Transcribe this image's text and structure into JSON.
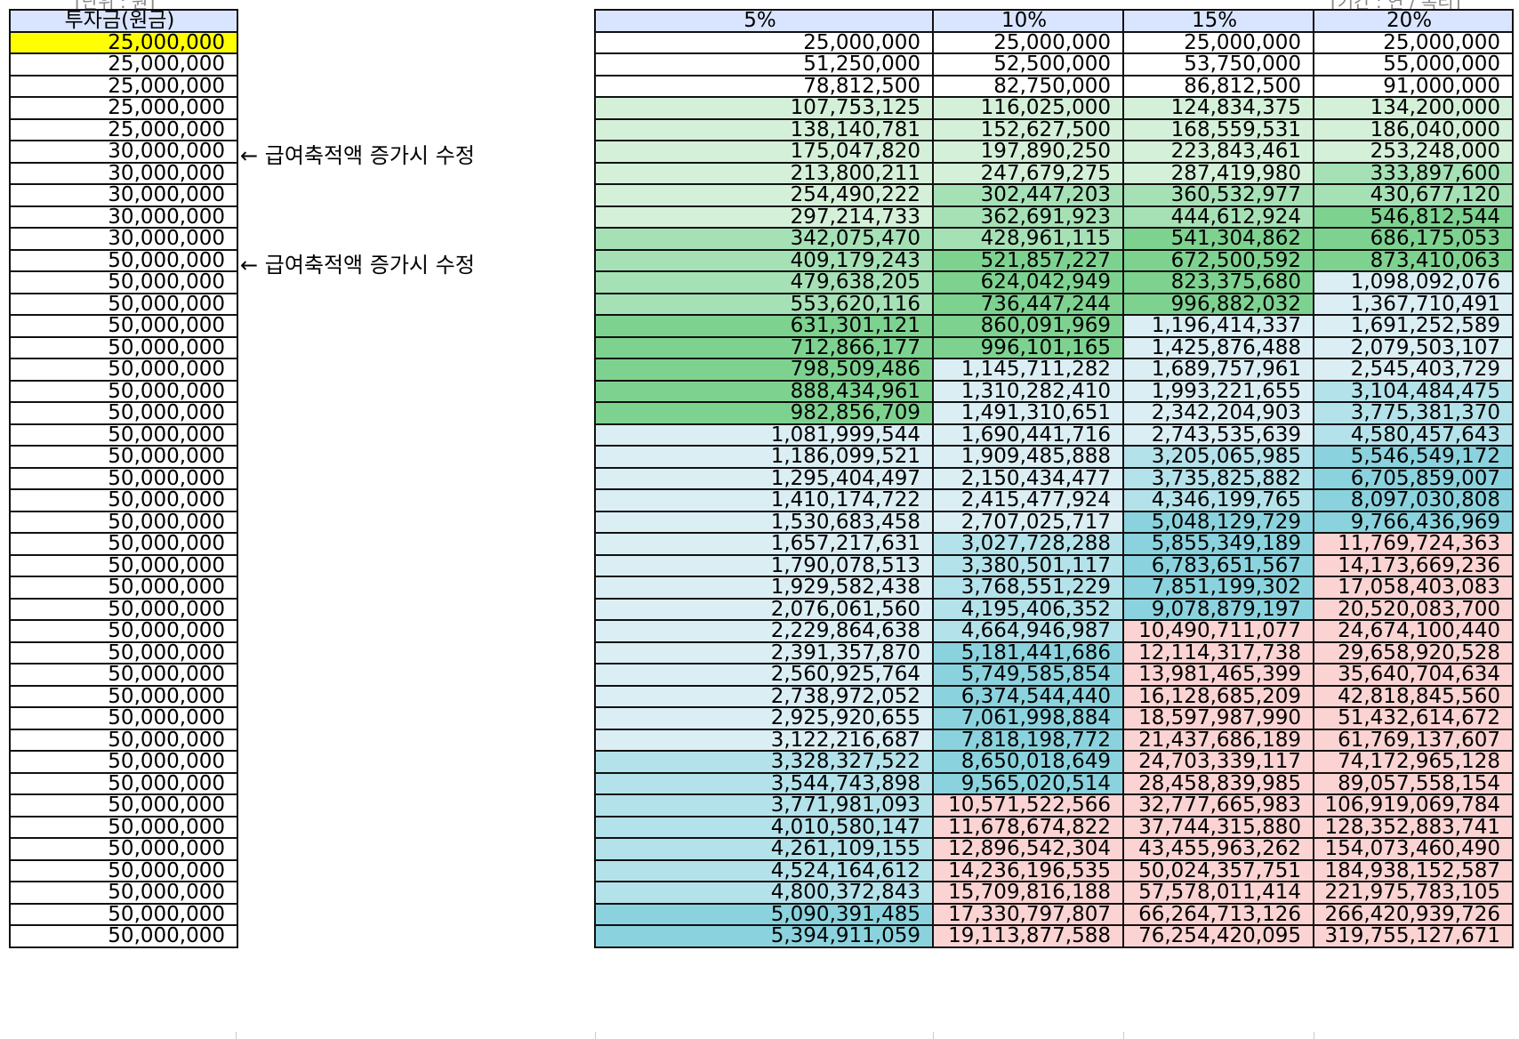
{
  "notes": {
    "left": "[단위 : 원]",
    "right": "[기간 : 연 / 복리]"
  },
  "left_table": {
    "header": "투자금(원금)",
    "rows": [
      "25,000,000",
      "25,000,000",
      "25,000,000",
      "25,000,000",
      "25,000,000",
      "30,000,000",
      "30,000,000",
      "30,000,000",
      "30,000,000",
      "30,000,000",
      "50,000,000",
      "50,000,000",
      "50,000,000",
      "50,000,000",
      "50,000,000",
      "50,000,000",
      "50,000,000",
      "50,000,000",
      "50,000,000",
      "50,000,000",
      "50,000,000",
      "50,000,000",
      "50,000,000",
      "50,000,000",
      "50,000,000",
      "50,000,000",
      "50,000,000",
      "50,000,000",
      "50,000,000",
      "50,000,000",
      "50,000,000",
      "50,000,000",
      "50,000,000",
      "50,000,000",
      "50,000,000",
      "50,000,000",
      "50,000,000",
      "50,000,000",
      "50,000,000",
      "50,000,000",
      "50,000,000",
      "50,000,000"
    ]
  },
  "annotations": [
    "← 급여축적액 증가시 수정",
    "← 급여축적액 증가시 수정"
  ],
  "right_table": {
    "headers": [
      "5%",
      "10%",
      "15%",
      "20%"
    ],
    "rows": [
      [
        "25,000,000",
        "25,000,000",
        "25,000,000",
        "25,000,000"
      ],
      [
        "51,250,000",
        "52,500,000",
        "53,750,000",
        "55,000,000"
      ],
      [
        "78,812,500",
        "82,750,000",
        "86,812,500",
        "91,000,000"
      ],
      [
        "107,753,125",
        "116,025,000",
        "124,834,375",
        "134,200,000"
      ],
      [
        "138,140,781",
        "152,627,500",
        "168,559,531",
        "186,040,000"
      ],
      [
        "175,047,820",
        "197,890,250",
        "223,843,461",
        "253,248,000"
      ],
      [
        "213,800,211",
        "247,679,275",
        "287,419,980",
        "333,897,600"
      ],
      [
        "254,490,222",
        "302,447,203",
        "360,532,977",
        "430,677,120"
      ],
      [
        "297,214,733",
        "362,691,923",
        "444,612,924",
        "546,812,544"
      ],
      [
        "342,075,470",
        "428,961,115",
        "541,304,862",
        "686,175,053"
      ],
      [
        "409,179,243",
        "521,857,227",
        "672,500,592",
        "873,410,063"
      ],
      [
        "479,638,205",
        "624,042,949",
        "823,375,680",
        "1,098,092,076"
      ],
      [
        "553,620,116",
        "736,447,244",
        "996,882,032",
        "1,367,710,491"
      ],
      [
        "631,301,121",
        "860,091,969",
        "1,196,414,337",
        "1,691,252,589"
      ],
      [
        "712,866,177",
        "996,101,165",
        "1,425,876,488",
        "2,079,503,107"
      ],
      [
        "798,509,486",
        "1,145,711,282",
        "1,689,757,961",
        "2,545,403,729"
      ],
      [
        "888,434,961",
        "1,310,282,410",
        "1,993,221,655",
        "3,104,484,475"
      ],
      [
        "982,856,709",
        "1,491,310,651",
        "2,342,204,903",
        "3,775,381,370"
      ],
      [
        "1,081,999,544",
        "1,690,441,716",
        "2,743,535,639",
        "4,580,457,643"
      ],
      [
        "1,186,099,521",
        "1,909,485,888",
        "3,205,065,985",
        "5,546,549,172"
      ],
      [
        "1,295,404,497",
        "2,150,434,477",
        "3,735,825,882",
        "6,705,859,007"
      ],
      [
        "1,410,174,722",
        "2,415,477,924",
        "4,346,199,765",
        "8,097,030,808"
      ],
      [
        "1,530,683,458",
        "2,707,025,717",
        "5,048,129,729",
        "9,766,436,969"
      ],
      [
        "1,657,217,631",
        "3,027,728,288",
        "5,855,349,189",
        "11,769,724,363"
      ],
      [
        "1,790,078,513",
        "3,380,501,117",
        "6,783,651,567",
        "14,173,669,236"
      ],
      [
        "1,929,582,438",
        "3,768,551,229",
        "7,851,199,302",
        "17,058,403,083"
      ],
      [
        "2,076,061,560",
        "4,195,406,352",
        "9,078,879,197",
        "20,520,083,700"
      ],
      [
        "2,229,864,638",
        "4,664,946,987",
        "10,490,711,077",
        "24,674,100,440"
      ],
      [
        "2,391,357,870",
        "5,181,441,686",
        "12,114,317,738",
        "29,658,920,528"
      ],
      [
        "2,560,925,764",
        "5,749,585,854",
        "13,981,465,399",
        "35,640,704,634"
      ],
      [
        "2,738,972,052",
        "6,374,544,440",
        "16,128,685,209",
        "42,818,845,560"
      ],
      [
        "2,925,920,655",
        "7,061,998,884",
        "18,597,987,990",
        "51,432,614,672"
      ],
      [
        "3,122,216,687",
        "7,818,198,772",
        "21,437,686,189",
        "61,769,137,607"
      ],
      [
        "3,328,327,522",
        "8,650,018,649",
        "24,703,339,117",
        "74,172,965,128"
      ],
      [
        "3,544,743,898",
        "9,565,020,514",
        "28,458,839,985",
        "89,057,558,154"
      ],
      [
        "3,771,981,093",
        "10,571,522,566",
        "32,777,665,983",
        "106,919,069,784"
      ],
      [
        "4,010,580,147",
        "11,678,674,822",
        "37,744,315,880",
        "128,352,883,741"
      ],
      [
        "4,261,109,155",
        "12,896,542,304",
        "43,455,963,262",
        "154,073,460,490"
      ],
      [
        "4,524,164,612",
        "14,236,196,535",
        "50,024,357,751",
        "184,938,152,587"
      ],
      [
        "4,800,372,843",
        "15,709,816,188",
        "57,578,011,414",
        "221,975,783,105"
      ],
      [
        "5,090,391,485",
        "17,330,797,807",
        "66,264,713,126",
        "266,420,939,726"
      ],
      [
        "5,394,911,059",
        "19,113,877,588",
        "76,254,420,095",
        "319,755,127,671"
      ]
    ],
    "fills": [
      [
        "w",
        "w",
        "w",
        "w"
      ],
      [
        "w",
        "w",
        "w",
        "w"
      ],
      [
        "w",
        "w",
        "w",
        "w"
      ],
      [
        "g1",
        "g1",
        "g1",
        "g1"
      ],
      [
        "g1",
        "g1",
        "g1",
        "g1"
      ],
      [
        "g1",
        "g1",
        "g1",
        "g1"
      ],
      [
        "g1",
        "g1",
        "g1",
        "g2"
      ],
      [
        "g1",
        "g2",
        "g2",
        "g2"
      ],
      [
        "g1",
        "g2",
        "g2",
        "g3"
      ],
      [
        "g2",
        "g2",
        "g3",
        "g3"
      ],
      [
        "g2",
        "g3",
        "g3",
        "g3"
      ],
      [
        "g2",
        "g3",
        "g3",
        "b1"
      ],
      [
        "g2",
        "g3",
        "g3",
        "b1"
      ],
      [
        "g3",
        "g3",
        "b1",
        "b1"
      ],
      [
        "g3",
        "g3",
        "b1",
        "b1"
      ],
      [
        "g3",
        "b1",
        "b1",
        "b1"
      ],
      [
        "g3",
        "b1",
        "b1",
        "b2"
      ],
      [
        "g3",
        "b1",
        "b1",
        "b2"
      ],
      [
        "b1",
        "b1",
        "b1",
        "b2"
      ],
      [
        "b1",
        "b1",
        "b2",
        "b3"
      ],
      [
        "b1",
        "b1",
        "b2",
        "b3"
      ],
      [
        "b1",
        "b1",
        "b2",
        "b3"
      ],
      [
        "b1",
        "b1",
        "b3",
        "b3"
      ],
      [
        "b1",
        "b2",
        "b3",
        "p1"
      ],
      [
        "b1",
        "b2",
        "b3",
        "p1"
      ],
      [
        "b1",
        "b2",
        "b3",
        "p1"
      ],
      [
        "b1",
        "b2",
        "b3",
        "p1"
      ],
      [
        "b1",
        "b2",
        "p1",
        "p1"
      ],
      [
        "b1",
        "b3",
        "p1",
        "p1"
      ],
      [
        "b1",
        "b3",
        "p1",
        "p1"
      ],
      [
        "b1",
        "b3",
        "p1",
        "p1"
      ],
      [
        "b1",
        "b3",
        "p1",
        "p1"
      ],
      [
        "b1",
        "b3",
        "p1",
        "p1"
      ],
      [
        "b2",
        "b3",
        "p1",
        "p1"
      ],
      [
        "b2",
        "b3",
        "p1",
        "p1"
      ],
      [
        "b2",
        "p1",
        "p1",
        "p1"
      ],
      [
        "b2",
        "p1",
        "p1",
        "p1"
      ],
      [
        "b2",
        "p1",
        "p1",
        "p1"
      ],
      [
        "b2",
        "p1",
        "p1",
        "p1"
      ],
      [
        "b2",
        "p1",
        "p1",
        "p1"
      ],
      [
        "b3",
        "p1",
        "p1",
        "p1"
      ],
      [
        "b3",
        "p1",
        "p1",
        "p1"
      ]
    ]
  }
}
